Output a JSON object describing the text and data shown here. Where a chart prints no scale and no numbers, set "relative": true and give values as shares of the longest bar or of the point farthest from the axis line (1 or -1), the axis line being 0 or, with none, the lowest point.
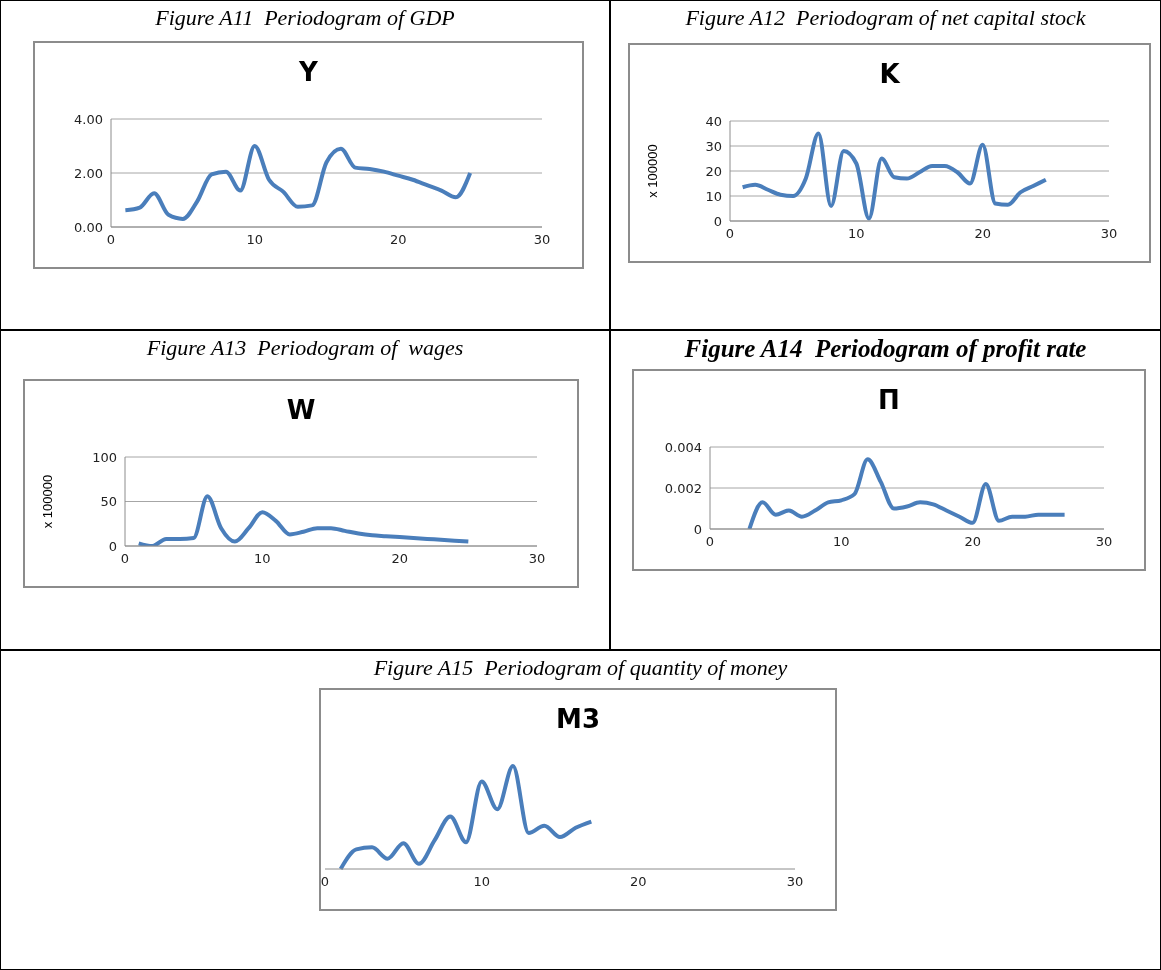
{
  "chart_data": [
    {
      "type": "line",
      "title": "Figure A11  Periodogram of GDP",
      "subtitle": "Y",
      "x": [
        1,
        2,
        3,
        4,
        5,
        6,
        7,
        8,
        9,
        10,
        11,
        12,
        13,
        14,
        15,
        16,
        17,
        18,
        19,
        20,
        21,
        22,
        23,
        24,
        25
      ],
      "series": [
        {
          "color": "#4a7ebb",
          "values": [
            0.62,
            0.72,
            1.25,
            0.45,
            0.3,
            0.95,
            1.95,
            2.05,
            1.35,
            3.0,
            1.75,
            1.3,
            0.75,
            0.8,
            2.4,
            2.9,
            2.2,
            2.15,
            2.05,
            1.9,
            1.75,
            1.55,
            1.35,
            1.1,
            2.0
          ]
        }
      ],
      "xlim": [
        0,
        30
      ],
      "xticks": [
        0,
        10,
        20,
        30
      ],
      "ylim": [
        0,
        4
      ],
      "yticks": [
        {
          "value": 0,
          "label": "0.00"
        },
        {
          "value": 2,
          "label": "2.00"
        },
        {
          "value": 4,
          "label": "4.00"
        }
      ],
      "grid": "y",
      "marker": "none"
    },
    {
      "type": "line",
      "title": "Figure A12  Periodogram of net capital stock",
      "subtitle": "K",
      "ylabel": "x 100000",
      "x": [
        1,
        2,
        3,
        4,
        5,
        6,
        7,
        8,
        9,
        10,
        11,
        12,
        13,
        14,
        15,
        16,
        17,
        18,
        19,
        20,
        21,
        22,
        23,
        24,
        25
      ],
      "series": [
        {
          "color": "#4a7ebb",
          "values": [
            13.5,
            14.5,
            12.5,
            10.5,
            10,
            17,
            35,
            6,
            28,
            23,
            1,
            25,
            17.5,
            17,
            19.5,
            22,
            22,
            19.5,
            15,
            30.5,
            7,
            6.5,
            11.5,
            14,
            16.5
          ]
        }
      ],
      "xlim": [
        0,
        30
      ],
      "xticks": [
        0,
        10,
        20,
        30
      ],
      "ylim": [
        0,
        40
      ],
      "yticks": [
        0,
        10,
        20,
        30,
        40
      ],
      "grid": "y",
      "marker": "none"
    },
    {
      "type": "line",
      "title": "Figure A13  Periodogram of  wages",
      "subtitle": "W",
      "ylabel": "x 100000",
      "x": [
        1,
        2,
        3,
        4,
        5,
        6,
        7,
        8,
        9,
        10,
        11,
        12,
        13,
        14,
        15,
        16,
        17,
        18,
        19,
        20,
        21,
        22,
        23,
        24,
        25
      ],
      "series": [
        {
          "color": "#4a7ebb",
          "values": [
            3,
            0,
            8,
            8,
            9,
            56,
            20,
            5,
            20,
            38,
            28,
            13,
            16,
            20,
            20,
            17,
            14,
            12,
            11,
            10,
            9,
            8,
            7,
            6,
            5
          ]
        }
      ],
      "xlim": [
        0,
        30
      ],
      "xticks": [
        0,
        10,
        20,
        30
      ],
      "ylim": [
        0,
        100
      ],
      "yticks": [
        0,
        50,
        100
      ],
      "grid": "y",
      "marker": "none"
    },
    {
      "type": "line",
      "title": "Figure A14  Periodogram of profit rate",
      "subtitle": "Π",
      "x": [
        3,
        4,
        5,
        6,
        7,
        8,
        9,
        10,
        11,
        12,
        13,
        14,
        15,
        16,
        17,
        18,
        19,
        20,
        21,
        22,
        23,
        24,
        25,
        26,
        27
      ],
      "series": [
        {
          "color": "#4a7ebb",
          "values": [
            0,
            0.0013,
            0.0007,
            0.0009,
            0.0006,
            0.0009,
            0.0013,
            0.0014,
            0.0017,
            0.0034,
            0.0023,
            0.001,
            0.0011,
            0.0013,
            0.0012,
            0.0009,
            0.0006,
            0.0003,
            0.0022,
            0.0004,
            0.0006,
            0.0006,
            0.0007,
            0.0007,
            0.0007
          ]
        }
      ],
      "xlim": [
        0,
        30
      ],
      "xticks": [
        0,
        10,
        20,
        30
      ],
      "ylim": [
        0,
        0.004
      ],
      "yticks": [
        0,
        0.002,
        0.004
      ],
      "grid": "y",
      "marker": "none"
    },
    {
      "type": "line",
      "title": "Figure A15  Periodogram of quantity of money",
      "subtitle": "M3",
      "relative": true,
      "x": [
        1,
        2,
        3,
        4,
        5,
        6,
        7,
        8,
        9,
        10,
        11,
        12,
        13,
        14,
        15,
        16,
        17
      ],
      "series": [
        {
          "color": "#4a7ebb",
          "values": [
            0,
            0.19,
            0.21,
            0.1,
            0.25,
            0.05,
            0.28,
            0.51,
            0.26,
            0.85,
            0.58,
            1,
            0.35,
            0.42,
            0.31,
            0.4,
            0.46
          ]
        }
      ],
      "xlim": [
        0,
        30
      ],
      "xticks": [
        0,
        10,
        20,
        30
      ],
      "marker": "none"
    }
  ]
}
